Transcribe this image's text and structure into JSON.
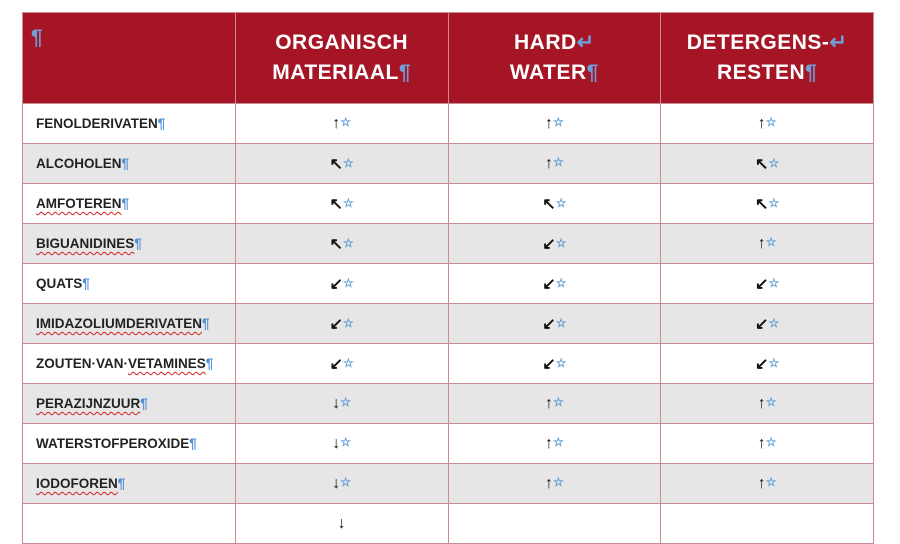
{
  "header": {
    "corner": "¶",
    "columns": [
      {
        "line1": "ORGANISCH",
        "line2": "MATERIAAL",
        "mark1": "",
        "mark2": "¶"
      },
      {
        "line1": "HARD",
        "line2": "WATER",
        "mark1": "↵",
        "mark2": "¶"
      },
      {
        "line1": "DETERGENS-",
        "line2": "RESTEN",
        "mark1": "↵",
        "mark2": "¶"
      }
    ]
  },
  "cell_marker": "☆",
  "pilcrow": "¶",
  "rows": [
    {
      "pre": "FENOLDERIVATEN",
      "sq": "",
      "post": "",
      "values": [
        "↑",
        "↑",
        "↑"
      ]
    },
    {
      "pre": "ALCOHOLEN",
      "sq": "",
      "post": "",
      "values": [
        "↖",
        "↑",
        "↖"
      ]
    },
    {
      "pre": "",
      "sq": "AMFOTEREN",
      "post": "",
      "values": [
        "↖",
        "↖",
        "↖"
      ]
    },
    {
      "pre": "",
      "sq": "BIGUANIDINES",
      "post": "",
      "values": [
        "↖",
        "↙",
        "↑"
      ]
    },
    {
      "pre": "QUATS",
      "sq": "",
      "post": "",
      "values": [
        "↙",
        "↙",
        "↙"
      ]
    },
    {
      "pre": "",
      "sq": "IMIDAZOLIUMDERIVATEN",
      "post": "",
      "values": [
        "↙",
        "↙",
        "↙"
      ]
    },
    {
      "pre": "ZOUTEN·VAN·",
      "sq": "VETAMINES",
      "post": "",
      "values": [
        "↙",
        "↙",
        "↙"
      ]
    },
    {
      "pre": "",
      "sq": "PERAZIJNZUUR",
      "post": "",
      "values": [
        "↓",
        "↑",
        "↑"
      ]
    },
    {
      "pre": "WATERSTOFPEROXIDE",
      "sq": "",
      "post": "",
      "values": [
        "↓",
        "↑",
        "↑"
      ]
    },
    {
      "pre": "",
      "sq": "IODOFOREN",
      "post": "",
      "values": [
        "↓",
        "↑",
        "↑"
      ]
    },
    {
      "pre": "",
      "sq": "",
      "post": "",
      "values": [
        "↓",
        "",
        ""
      ]
    }
  ],
  "colors": {
    "header_bg": "#a61526",
    "alt_row": "#e6e6e6",
    "formatting_marks": "#5b9bd5"
  }
}
